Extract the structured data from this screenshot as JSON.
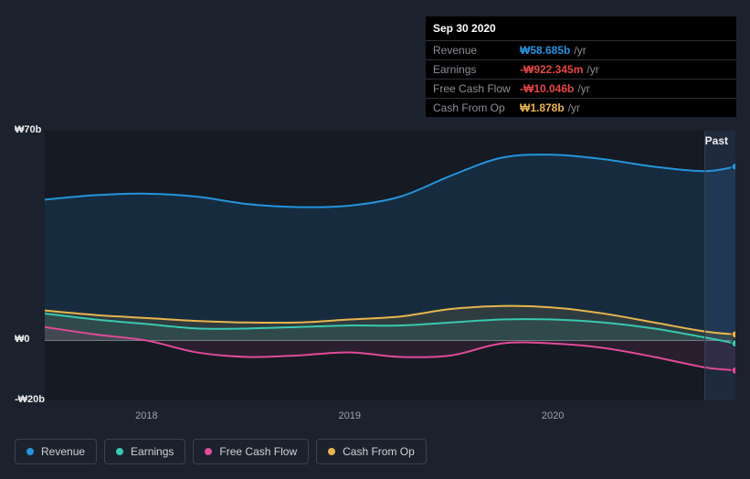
{
  "tooltip": {
    "date": "Sep 30 2020",
    "rows": [
      {
        "label": "Revenue",
        "value": "₩58.685b",
        "unit": "/yr",
        "color": "#2394df"
      },
      {
        "label": "Earnings",
        "value": "-₩922.345m",
        "unit": "/yr",
        "color": "#e64545"
      },
      {
        "label": "Free Cash Flow",
        "value": "-₩10.046b",
        "unit": "/yr",
        "color": "#e64545"
      },
      {
        "label": "Cash From Op",
        "value": "₩1.878b",
        "unit": "/yr",
        "color": "#e9b54b"
      }
    ]
  },
  "chart": {
    "type": "area",
    "background": "#1b222d",
    "plot_bg_left": "#151a23",
    "plot_bg_right": "#1f2a3d",
    "past_label": "Past",
    "axis_line_color": "#6c727d",
    "y": {
      "min": -20,
      "max": 70,
      "ticks": [
        {
          "v": 70,
          "label": "₩70b"
        },
        {
          "v": 0,
          "label": "₩0"
        },
        {
          "v": -20,
          "label": "-₩20b"
        }
      ]
    },
    "x": {
      "min": 2017.5,
      "max": 2020.9,
      "split": 2020.75,
      "ticks": [
        {
          "v": 2018,
          "label": "2018"
        },
        {
          "v": 2019,
          "label": "2019"
        },
        {
          "v": 2020,
          "label": "2020"
        }
      ]
    },
    "series": [
      {
        "key": "revenue",
        "label": "Revenue",
        "stroke": "#2394df",
        "fill": "#2394df",
        "fill_opacity": 0.15,
        "points": [
          [
            2017.5,
            47
          ],
          [
            2017.75,
            48.5
          ],
          [
            2018,
            49
          ],
          [
            2018.25,
            48
          ],
          [
            2018.5,
            45.5
          ],
          [
            2018.75,
            44.5
          ],
          [
            2019,
            45
          ],
          [
            2019.25,
            48
          ],
          [
            2019.5,
            55
          ],
          [
            2019.75,
            61
          ],
          [
            2020,
            62
          ],
          [
            2020.25,
            60.5
          ],
          [
            2020.5,
            58
          ],
          [
            2020.75,
            56.5
          ],
          [
            2020.9,
            58
          ]
        ],
        "end_dot_color": "#2394df"
      },
      {
        "key": "cashfromop",
        "label": "Cash From Op",
        "stroke": "#e9b54b",
        "fill": "#e9b54b",
        "fill_opacity": 0.12,
        "points": [
          [
            2017.5,
            10
          ],
          [
            2017.75,
            8.5
          ],
          [
            2018,
            7.5
          ],
          [
            2018.25,
            6.5
          ],
          [
            2018.5,
            6
          ],
          [
            2018.75,
            6
          ],
          [
            2019,
            7
          ],
          [
            2019.25,
            8
          ],
          [
            2019.5,
            10.5
          ],
          [
            2019.75,
            11.5
          ],
          [
            2020,
            11
          ],
          [
            2020.25,
            9
          ],
          [
            2020.5,
            6
          ],
          [
            2020.75,
            3
          ],
          [
            2020.9,
            2
          ]
        ],
        "end_dot_color": "#e9b54b"
      },
      {
        "key": "earnings",
        "label": "Earnings",
        "stroke": "#38c9b0",
        "fill": "#38c9b0",
        "fill_opacity": 0.1,
        "points": [
          [
            2017.5,
            9
          ],
          [
            2017.75,
            7
          ],
          [
            2018,
            5.5
          ],
          [
            2018.25,
            4
          ],
          [
            2018.5,
            4
          ],
          [
            2018.75,
            4.5
          ],
          [
            2019,
            5
          ],
          [
            2019.25,
            5
          ],
          [
            2019.5,
            6
          ],
          [
            2019.75,
            7
          ],
          [
            2020,
            7
          ],
          [
            2020.25,
            6
          ],
          [
            2020.5,
            4
          ],
          [
            2020.75,
            1
          ],
          [
            2020.9,
            -1
          ]
        ],
        "end_dot_color": "#38c9b0"
      },
      {
        "key": "fcf",
        "label": "Free Cash Flow",
        "stroke": "#e24a9a",
        "fill": "#e24a9a",
        "fill_opacity": 0.1,
        "points": [
          [
            2017.5,
            4.5
          ],
          [
            2017.75,
            2
          ],
          [
            2018,
            0
          ],
          [
            2018.25,
            -4
          ],
          [
            2018.5,
            -5.5
          ],
          [
            2018.75,
            -5
          ],
          [
            2019,
            -4
          ],
          [
            2019.25,
            -5.5
          ],
          [
            2019.5,
            -5
          ],
          [
            2019.75,
            -1
          ],
          [
            2020,
            -1
          ],
          [
            2020.25,
            -2.5
          ],
          [
            2020.5,
            -5.5
          ],
          [
            2020.75,
            -9
          ],
          [
            2020.9,
            -10
          ]
        ],
        "end_dot_color": "#e24a9a"
      }
    ],
    "stroke_width": 2
  },
  "legend": [
    {
      "label": "Revenue",
      "color": "#2394df"
    },
    {
      "label": "Earnings",
      "color": "#38c9b0"
    },
    {
      "label": "Free Cash Flow",
      "color": "#e24a9a"
    },
    {
      "label": "Cash From Op",
      "color": "#e9b54b"
    }
  ]
}
